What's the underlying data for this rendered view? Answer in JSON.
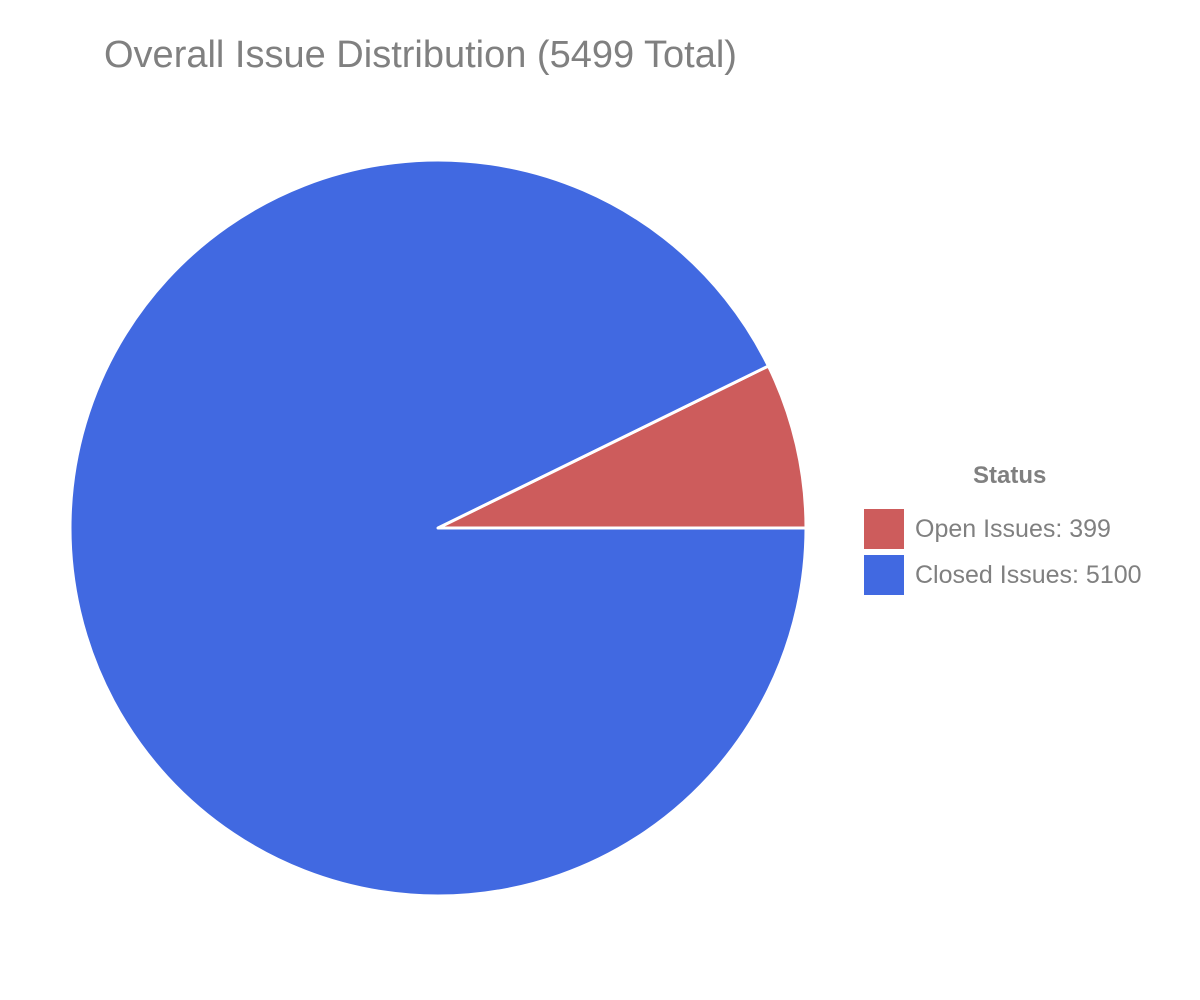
{
  "chart_data": {
    "type": "pie",
    "title": "Overall Issue Distribution (5499 Total)",
    "legend_title": "Status",
    "legend_position": "right",
    "slices": [
      {
        "label": "Open Issues",
        "value": 399,
        "color": "#CD5C5C",
        "legend_text": "Open Issues: 399"
      },
      {
        "label": "Closed Issues",
        "value": 5100,
        "color": "#4169E1",
        "legend_text": "Closed Issues: 5100"
      }
    ],
    "total": 5499
  }
}
